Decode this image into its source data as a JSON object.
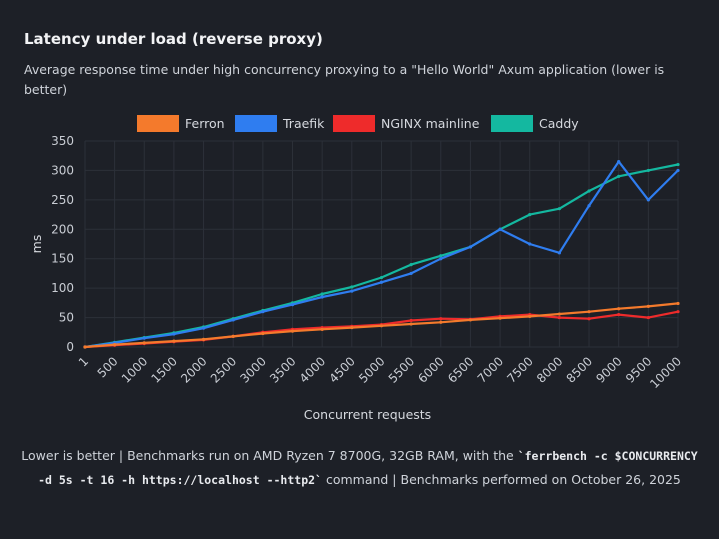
{
  "title": "Latency under load (reverse proxy)",
  "subtitle": "Average response time under high concurrency proxying to a \"Hello World\" Axum application (lower is better)",
  "footer": {
    "text_before": "Lower is better | Benchmarks run on AMD Ryzen 7 8700G, 32GB RAM, with the ",
    "command": "`ferrbench -c $CONCURRENCY -d 5s -t 16 -h https://localhost --http2`",
    "text_after": " command | Benchmarks performed on October 26, 2025"
  },
  "colors": {
    "background": "#1d2027",
    "grid": "#2c3039",
    "Ferron": "#f47a2c",
    "Traefik": "#2f7df0",
    "NGINX mainline": "#ee2b2b",
    "Caddy": "#14b8a0"
  },
  "chart_data": {
    "type": "line",
    "title": "Latency under load (reverse proxy)",
    "xlabel": "Concurrent requests",
    "ylabel": "ms",
    "ylim": [
      0,
      350
    ],
    "xlim": [
      1,
      10000
    ],
    "grid": true,
    "legend_position": "top",
    "y_ticks": [
      0,
      50,
      100,
      150,
      200,
      250,
      300,
      350
    ],
    "x_tick_labels": [
      "1",
      "500",
      "1000",
      "1500",
      "2000",
      "2500",
      "3000",
      "3500",
      "4000",
      "4500",
      "5000",
      "5500",
      "6000",
      "6500",
      "7000",
      "7500",
      "8000",
      "8500",
      "9000",
      "9500",
      "10000"
    ],
    "x": [
      1,
      500,
      1000,
      1500,
      2000,
      2500,
      3000,
      3500,
      4000,
      4500,
      5000,
      5500,
      6000,
      6500,
      7000,
      7500,
      8000,
      8500,
      9000,
      9500,
      10000
    ],
    "series": [
      {
        "name": "Ferron",
        "values": [
          0,
          4,
          7,
          10,
          13,
          18,
          23,
          27,
          30,
          33,
          36,
          39,
          42,
          46,
          49,
          52,
          56,
          60,
          65,
          69,
          74
        ]
      },
      {
        "name": "Traefik",
        "values": [
          0,
          7,
          15,
          22,
          32,
          46,
          60,
          72,
          85,
          95,
          110,
          125,
          150,
          170,
          200,
          175,
          160,
          240,
          315,
          250,
          300
        ]
      },
      {
        "name": "NGINX mainline",
        "values": [
          0,
          3,
          6,
          9,
          12,
          18,
          25,
          30,
          33,
          35,
          38,
          45,
          48,
          47,
          52,
          55,
          50,
          48,
          55,
          50,
          60
        ]
      },
      {
        "name": "Caddy",
        "values": [
          0,
          8,
          16,
          24,
          34,
          48,
          62,
          75,
          90,
          102,
          118,
          140,
          155,
          170,
          200,
          225,
          235,
          265,
          290,
          300,
          310
        ]
      }
    ]
  }
}
